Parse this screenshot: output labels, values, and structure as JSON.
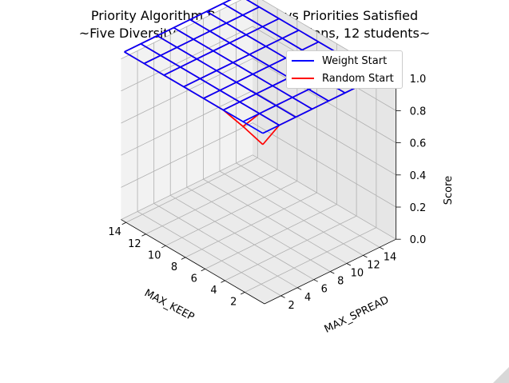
{
  "chart_data": {
    "type": "surface-wireframe-3d",
    "title_lines": [
      "Priority Algorithm Parameters vs Priorities Satisfied",
      "~Five Diversity Constraint, 10 iterations, 12 students~"
    ],
    "xlabel": "MAX_KEEP",
    "ylabel": "MAX_SPREAD",
    "zlabel": "Score",
    "xticks": [
      2,
      4,
      6,
      8,
      10,
      12,
      14
    ],
    "yticks": [
      2,
      4,
      6,
      8,
      10,
      12,
      14
    ],
    "zticks": [
      "0.0",
      "0.2",
      "0.4",
      "0.6",
      "0.8",
      "1.0"
    ],
    "zlim": [
      0,
      1
    ],
    "grid": true,
    "legend_position": "upper-right",
    "x": [
      1,
      3,
      5,
      7,
      9,
      11,
      13,
      15
    ],
    "y": [
      1,
      3,
      5,
      7,
      9,
      11,
      13,
      15
    ],
    "series": [
      {
        "name": "Weight Start",
        "color": "#0000ff",
        "z": [
          [
            1.0,
            1.0,
            1.0,
            1.0,
            1.0,
            1.0,
            1.0,
            1.0
          ],
          [
            1.0,
            1.0,
            1.0,
            1.0,
            1.0,
            1.0,
            1.0,
            1.0
          ],
          [
            1.0,
            1.0,
            1.0,
            1.0,
            1.0,
            1.0,
            1.0,
            1.0
          ],
          [
            1.0,
            1.0,
            1.0,
            1.0,
            1.0,
            1.0,
            1.0,
            1.0
          ],
          [
            1.0,
            1.0,
            1.0,
            1.0,
            1.0,
            1.0,
            1.0,
            1.0
          ],
          [
            1.0,
            1.0,
            1.0,
            1.0,
            1.0,
            1.0,
            1.0,
            1.0
          ],
          [
            1.0,
            1.0,
            1.0,
            1.0,
            1.0,
            1.0,
            1.0,
            1.0
          ],
          [
            1.0,
            1.0,
            1.0,
            1.0,
            1.0,
            1.0,
            1.0,
            1.0
          ]
        ]
      },
      {
        "name": "Random Start",
        "color": "#ff0000",
        "z": [
          [
            0.93,
            1.0,
            1.0,
            1.0,
            1.0,
            1.0,
            1.0,
            1.0
          ],
          [
            0.97,
            1.0,
            1.0,
            1.0,
            1.0,
            1.0,
            1.0,
            1.0
          ],
          [
            1.0,
            1.0,
            1.0,
            1.0,
            1.0,
            1.0,
            1.0,
            1.0
          ],
          [
            1.0,
            1.0,
            1.0,
            1.0,
            1.0,
            1.0,
            1.0,
            1.0
          ],
          [
            1.0,
            1.0,
            1.0,
            1.0,
            1.0,
            1.0,
            1.0,
            1.0
          ],
          [
            1.0,
            1.0,
            1.0,
            1.0,
            1.0,
            1.0,
            1.0,
            1.0
          ],
          [
            1.0,
            1.0,
            1.0,
            1.0,
            1.0,
            1.0,
            1.0,
            1.0
          ],
          [
            1.0,
            1.0,
            1.0,
            1.0,
            1.0,
            1.0,
            1.0,
            1.0
          ]
        ]
      }
    ]
  }
}
